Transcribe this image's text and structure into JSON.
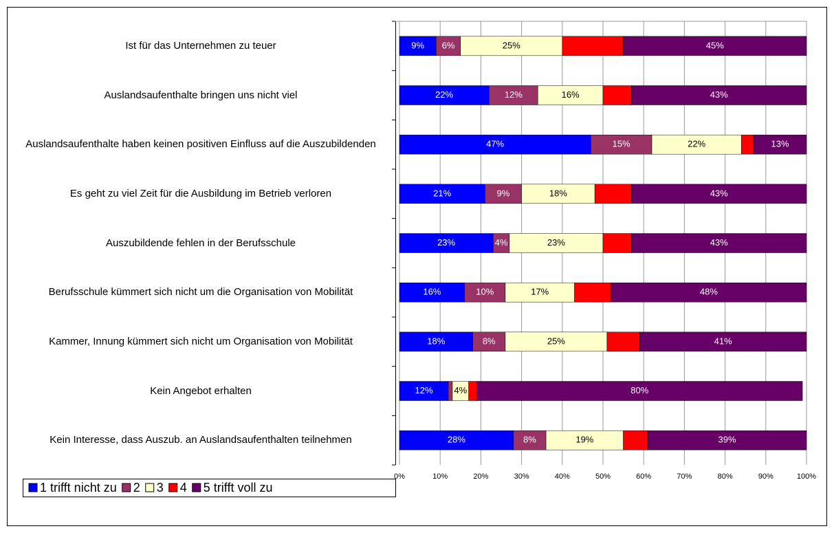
{
  "chart_data": {
    "type": "stacked_barh",
    "categories": [
      "Ist für das Unternehmen zu teuer",
      "Auslandsaufenthalte bringen uns nicht viel",
      "Auslandsaufenthalte haben keinen positiven Einfluss auf die Auszubildenden",
      "Es geht zu viel Zeit für die Ausbildung im Betrieb verloren",
      "Auszubildende fehlen in der Berufsschule",
      "Berufsschule kümmert sich nicht um die Organisation von Mobilität",
      "Kammer, Innung kümmert sich nicht um Organisation von Mobilität",
      "Kein Angebot erhalten",
      "Kein Interesse, dass Auszub. an Auslandsaufenthalten teilnehmen"
    ],
    "series": [
      {
        "name": "1 trifft nicht zu",
        "color": "#0000ff",
        "values": [
          9,
          22,
          47,
          21,
          23,
          16,
          18,
          12,
          28
        ],
        "value_labels": [
          "9%",
          "22%",
          "47%",
          "21%",
          "23%",
          "16%",
          "18%",
          "12%",
          "28%"
        ]
      },
      {
        "name": "2",
        "color": "#993366",
        "values": [
          6,
          12,
          15,
          9,
          4,
          10,
          8,
          1,
          8
        ],
        "value_labels": [
          "6%",
          "12%",
          "15%",
          "9%",
          "4%",
          "10%",
          "8%",
          null,
          "8%"
        ]
      },
      {
        "name": "3",
        "color": "#ffffcc",
        "values": [
          25,
          16,
          22,
          18,
          23,
          17,
          25,
          4,
          19
        ],
        "value_labels": [
          "25%",
          "16%",
          "22%",
          "18%",
          "23%",
          "17%",
          "25%",
          "4%",
          "19%"
        ]
      },
      {
        "name": "4",
        "color": "#ff0000",
        "values": [
          15,
          7,
          3,
          9,
          7,
          9,
          8,
          2,
          6
        ],
        "value_labels": [
          null,
          null,
          null,
          null,
          null,
          null,
          null,
          null,
          null
        ]
      },
      {
        "name": "5 trifft voll zu",
        "color": "#660066",
        "values": [
          45,
          43,
          13,
          43,
          43,
          48,
          41,
          80,
          39
        ],
        "value_labels": [
          "45%",
          "43%",
          "13%",
          "43%",
          "43%",
          "48%",
          "41%",
          "80%",
          "39%"
        ]
      }
    ],
    "xlim": [
      0,
      100
    ],
    "xticks": [
      {
        "value": 0,
        "label": "0%"
      },
      {
        "value": 10,
        "label": "10%"
      },
      {
        "value": 20,
        "label": "20%"
      },
      {
        "value": 30,
        "label": "30%"
      },
      {
        "value": 40,
        "label": "40%"
      },
      {
        "value": 50,
        "label": "50%"
      },
      {
        "value": 60,
        "label": "60%"
      },
      {
        "value": 70,
        "label": "70%"
      },
      {
        "value": 80,
        "label": "80%"
      },
      {
        "value": 90,
        "label": "90%"
      },
      {
        "value": 100,
        "label": "100%"
      }
    ],
    "grid": true,
    "legend": "bottom-left"
  }
}
